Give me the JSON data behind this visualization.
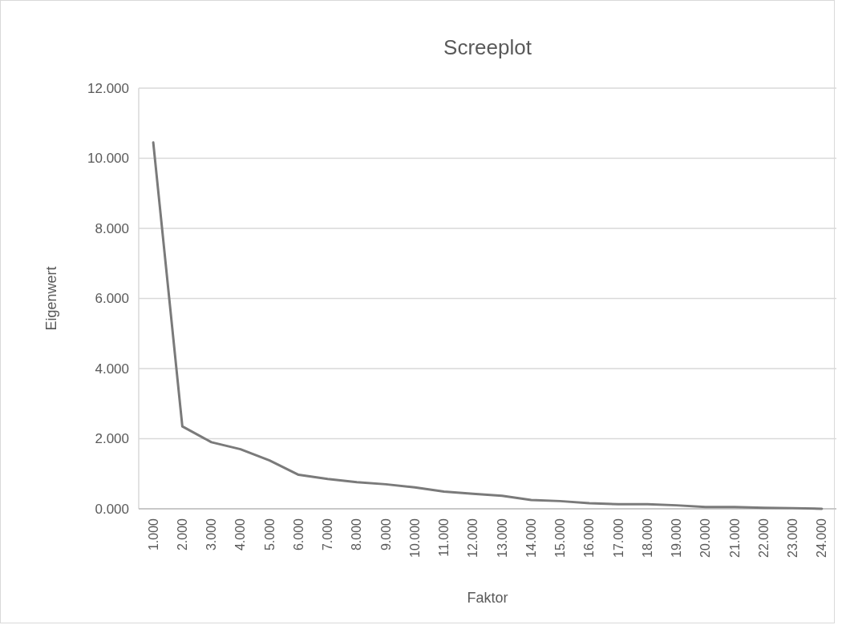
{
  "chart_data": {
    "type": "line",
    "title": "Screeplot",
    "xlabel": "Faktor",
    "ylabel": "Eigenwert",
    "categories": [
      "1.000",
      "2.000",
      "3.000",
      "4.000",
      "5.000",
      "6.000",
      "7.000",
      "8.000",
      "9.000",
      "10.000",
      "11.000",
      "12.000",
      "13.000",
      "14.000",
      "15.000",
      "16.000",
      "17.000",
      "18.000",
      "19.000",
      "20.000",
      "21.000",
      "22.000",
      "23.000",
      "24.000"
    ],
    "series": [
      {
        "color": "#7a7a7a",
        "values": [
          10.45,
          2.35,
          1.9,
          1.7,
          1.38,
          0.97,
          0.85,
          0.76,
          0.7,
          0.61,
          0.49,
          0.43,
          0.37,
          0.25,
          0.22,
          0.16,
          0.13,
          0.13,
          0.1,
          0.05,
          0.05,
          0.03,
          0.02,
          0.0
        ]
      }
    ],
    "ylim": [
      0,
      12
    ],
    "yticks": [
      {
        "value": 0,
        "label": "0.000"
      },
      {
        "value": 2,
        "label": "2.000"
      },
      {
        "value": 4,
        "label": "4.000"
      },
      {
        "value": 6,
        "label": "6.000"
      },
      {
        "value": 8,
        "label": "8.000"
      },
      {
        "value": 10,
        "label": "10.000"
      },
      {
        "value": 12,
        "label": "12.000"
      }
    ],
    "grid": "y",
    "marker": "none",
    "line_style": "solid"
  }
}
